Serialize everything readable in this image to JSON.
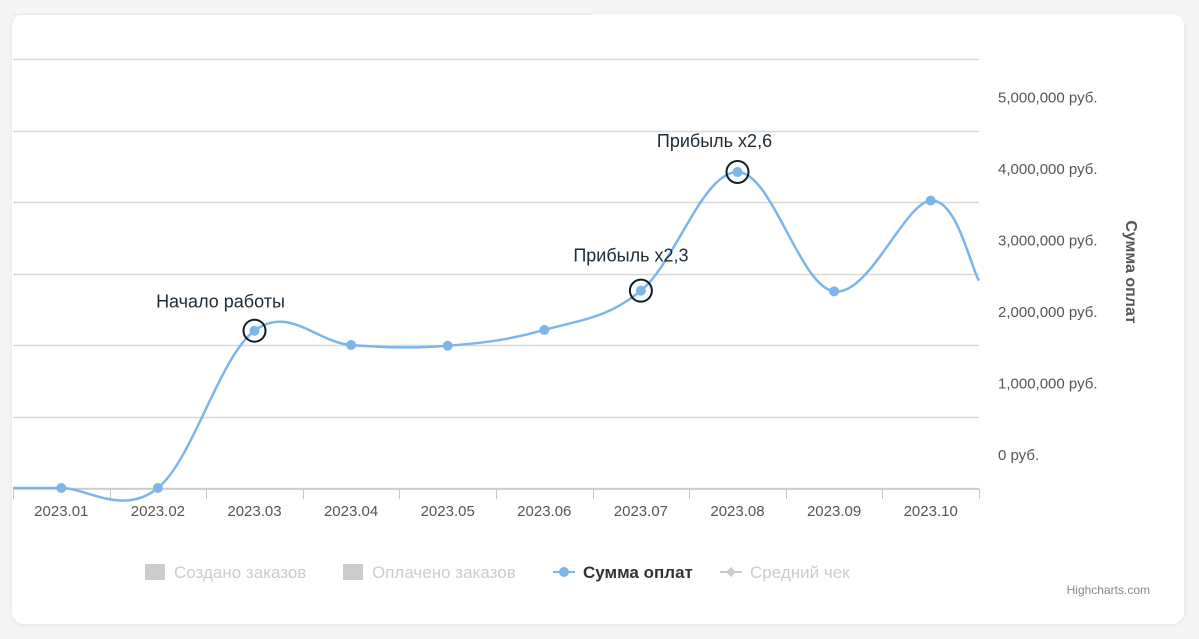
{
  "chart_data": {
    "type": "line",
    "categories": [
      "2023.01",
      "2023.02",
      "2023.03",
      "2023.04",
      "2023.05",
      "2023.06",
      "2023.07",
      "2023.08",
      "2023.09",
      "2023.10"
    ],
    "series": [
      {
        "name": "Сумма оплат",
        "color": "#7cb5ec",
        "values": [
          0,
          0,
          2200000,
          2000000,
          1990000,
          2210000,
          2760000,
          4420000,
          2750000,
          4020000
        ]
      }
    ],
    "y_tick_labels": [
      "0 руб.",
      "1,000,000 руб.",
      "2,000,000 руб.",
      "3,000,000 руб.",
      "4,000,000 руб.",
      "5,000,000 руб."
    ],
    "y_ticks": [
      0,
      1000000,
      2000000,
      3000000,
      4000000,
      5000000
    ],
    "ylabel": "Сумма оплат",
    "ylim": [
      -1000000,
      5800000
    ],
    "grid": true,
    "annotations": [
      {
        "text": "Начало работы",
        "category": "2023.03"
      },
      {
        "text": "Прибыль х2,3",
        "category": "2023.07"
      },
      {
        "text": "Прибыль х2,6",
        "category": "2023.08"
      }
    ],
    "legend": [
      {
        "label": "Создано заказов",
        "symbol": "square",
        "active": false
      },
      {
        "label": "Оплачено заказов",
        "symbol": "square",
        "active": false
      },
      {
        "label": "Сумма оплат",
        "symbol": "line-dot",
        "active": true
      },
      {
        "label": "Средний чек",
        "symbol": "line-diamond",
        "active": false
      }
    ],
    "legend_position": "bottom-center",
    "credits": "Highcharts.com"
  }
}
